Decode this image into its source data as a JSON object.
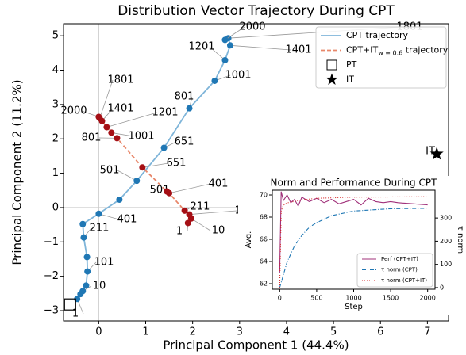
{
  "chart_data": [
    {
      "type": "line",
      "title": "Distribution Vector Trajectory During CPT",
      "x_label": "Principal Component 1  (44.4%)",
      "y_label": "Principal Component 2  (11.2%)",
      "xlim": [
        -0.75,
        7.45
      ],
      "ylim": [
        -3.3,
        5.35
      ],
      "xticks": [
        0,
        1,
        2,
        3,
        4,
        5,
        6,
        7
      ],
      "yticks": [
        {
          "value": -3,
          "label": "−3"
        },
        {
          "value": -2,
          "label": "−2"
        },
        {
          "value": -1,
          "label": "−1"
        },
        0,
        1,
        2,
        3,
        4,
        5
      ],
      "hline": 0,
      "vline": 0,
      "legend": "upper right",
      "series": [
        {
          "name": "CPT trajectory",
          "color": "#1f77b4",
          "line_color": "#7fb5d9",
          "style": "solid",
          "x": [
            -0.46,
            -0.39,
            -0.34,
            -0.27,
            -0.24,
            -0.25,
            -0.32,
            -0.34,
            0,
            0.44,
            0.81,
            1.39,
            1.93,
            2.47,
            2.69,
            2.8,
            2.76,
            2.69
          ],
          "values": [
            -2.66,
            -2.52,
            -2.43,
            -2.27,
            -1.86,
            -1.44,
            -0.87,
            -0.48,
            -0.18,
            0.23,
            0.78,
            1.74,
            2.89,
            3.69,
            4.29,
            4.72,
            4.93,
            4.88
          ],
          "point_labels": [
            "1",
            null,
            "10",
            null,
            "101",
            null,
            "211",
            null,
            "401",
            null,
            "501",
            "651",
            "801",
            "1001",
            "1201",
            "1401",
            "1801",
            "2000"
          ]
        },
        {
          "name": "CPT+IT",
          "subscript": "w = 0.6",
          "suffix": " trajectory",
          "color": "#a50f15",
          "line_color": "#e8876a",
          "label_color": "#d6492a",
          "style": "dashed",
          "x": [
            1.9,
            1.97,
            1.93,
            1.83,
            1.5,
            1.45,
            0.93,
            0.39,
            0.27,
            0.17,
            0.07,
            0.02,
            0
          ],
          "values": [
            -0.45,
            -0.32,
            -0.2,
            -0.09,
            0.42,
            0.47,
            1.17,
            2.02,
            2.18,
            2.34,
            2.52,
            2.6,
            2.64
          ],
          "point_labels": [
            "1",
            "10",
            "101",
            "211",
            "401",
            "501",
            "651",
            "801",
            "1001",
            "1201",
            "1401",
            "1801",
            "2000"
          ]
        },
        {
          "name": "PT",
          "marker": "square",
          "color": "#000",
          "x": [
            -0.61
          ],
          "values": [
            -2.82
          ]
        },
        {
          "name": "IT",
          "marker": "star",
          "color": "#000",
          "x": [
            7.2
          ],
          "values": [
            1.56
          ],
          "point_labels": [
            "IT"
          ]
        }
      ]
    },
    {
      "type": "line",
      "title": "Norm and Performance During CPT",
      "x_label": "Step",
      "y_label": "Avg.",
      "y2_label": "τ norm",
      "xlim": [
        -100,
        2100
      ],
      "ylim": [
        61.5,
        70.43
      ],
      "y2lim": [
        -7,
        420
      ],
      "xticks": [
        0,
        500,
        1000,
        1500,
        2000
      ],
      "yticks": [
        62,
        64,
        66,
        68,
        70
      ],
      "y2ticks": [
        0,
        100,
        200,
        300
      ],
      "legend": "lower right",
      "series": [
        {
          "name": "Perf (CPT+IT)",
          "color": "#a0307a",
          "style": "solid",
          "x": [
            0,
            20,
            50,
            100,
            150,
            200,
            250,
            300,
            400,
            500,
            600,
            700,
            800,
            900,
            1000,
            1100,
            1200,
            1300,
            1400,
            1500,
            1600,
            1800,
            2000
          ],
          "values": [
            63,
            70.3,
            69.5,
            70,
            69.3,
            69.6,
            69,
            69.8,
            69.4,
            69.7,
            69.3,
            69.6,
            69.2,
            69.4,
            69.6,
            69.1,
            69.7,
            69.4,
            69.3,
            69.4,
            69.3,
            69.2,
            69.1
          ]
        },
        {
          "name": "τ norm (CPT)",
          "color": "#1f77b4",
          "style": "dashdot",
          "axis": "y2",
          "x": [
            0,
            100,
            200,
            300,
            400,
            500,
            700,
            1000,
            1500,
            2000
          ],
          "values": [
            0,
            110,
            180,
            225,
            260,
            280,
            310,
            330,
            340,
            342
          ]
        },
        {
          "name": "τ norm (CPT+IT)",
          "color": "#d62728",
          "style": "dotted",
          "axis": "y2",
          "x": [
            0,
            20,
            50,
            100,
            300,
            500,
            1000,
            2000
          ],
          "values": [
            0,
            330,
            355,
            365,
            378,
            385,
            390,
            392
          ]
        }
      ]
    }
  ]
}
